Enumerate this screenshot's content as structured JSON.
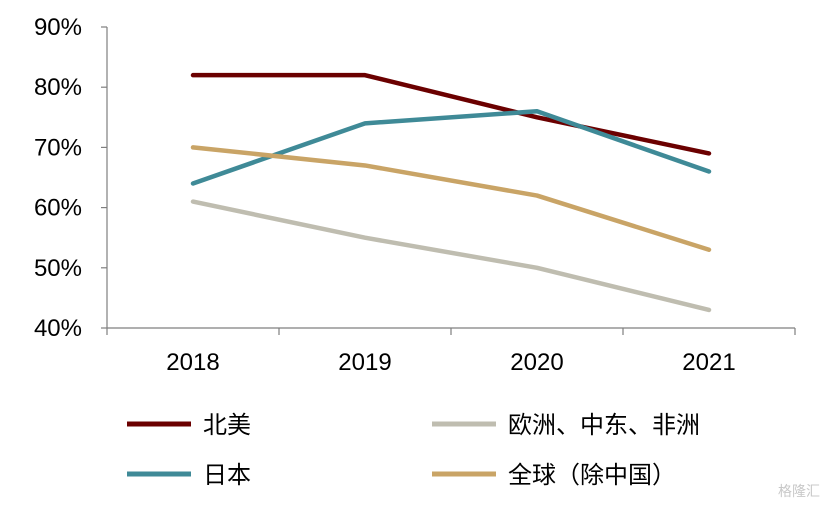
{
  "chart_data": {
    "type": "line",
    "categories": [
      "2018",
      "2019",
      "2020",
      "2021"
    ],
    "ylim": [
      40,
      90
    ],
    "yticks": [
      "40%",
      "50%",
      "60%",
      "70%",
      "80%",
      "90%"
    ],
    "grid": false,
    "legend_position": "bottom",
    "series": [
      {
        "name": "北美",
        "color": "#6b0000",
        "values": [
          82,
          82,
          75,
          69
        ]
      },
      {
        "name": "欧洲、中东、非洲",
        "color": "#bfbdb0",
        "values": [
          61,
          55,
          50,
          43
        ]
      },
      {
        "name": "日本",
        "color": "#3f8a97",
        "values": [
          64,
          74,
          76,
          66
        ]
      },
      {
        "name": "全球（除中国）",
        "color": "#c9a466",
        "values": [
          70,
          67,
          62,
          53
        ]
      }
    ]
  },
  "watermark": {
    "text": "格隆汇"
  }
}
